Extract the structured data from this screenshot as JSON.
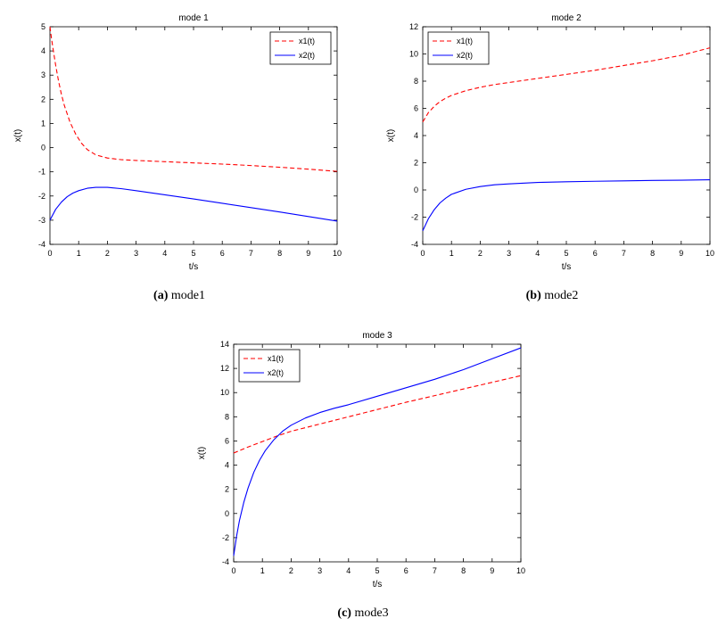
{
  "page": {
    "background": "#ffffff"
  },
  "colors": {
    "axis": "#000000",
    "x1": "#ff0000",
    "x2": "#0000ff"
  },
  "chart_data": [
    {
      "type": "line",
      "title": "mode 1",
      "caption_label": "(a)",
      "caption_text": "mode1",
      "xlabel": "t/s",
      "ylabel": "x(t)",
      "xlim": [
        0,
        10
      ],
      "ylim": [
        -4,
        5
      ],
      "xticks": [
        0,
        1,
        2,
        3,
        4,
        5,
        6,
        7,
        8,
        9,
        10
      ],
      "yticks": [
        -4,
        -3,
        -2,
        -1,
        0,
        1,
        2,
        3,
        4,
        5
      ],
      "grid": false,
      "legend_position": "top-right",
      "series": [
        {
          "name": "x1(t)",
          "color": "#ff0000",
          "style": "dashed",
          "x": [
            0,
            0.05,
            0.1,
            0.2,
            0.3,
            0.4,
            0.5,
            0.7,
            0.9,
            1.1,
            1.3,
            1.6,
            2,
            2.5,
            3,
            4,
            5,
            6,
            7,
            8,
            9,
            10
          ],
          "y": [
            5,
            4.55,
            4.15,
            3.4,
            2.75,
            2.2,
            1.75,
            1.05,
            0.55,
            0.18,
            -0.08,
            -0.3,
            -0.43,
            -0.5,
            -0.53,
            -0.58,
            -0.63,
            -0.68,
            -0.74,
            -0.81,
            -0.89,
            -0.98
          ]
        },
        {
          "name": "x2(t)",
          "color": "#0000ff",
          "style": "solid",
          "x": [
            0,
            0.2,
            0.4,
            0.6,
            0.8,
            1,
            1.3,
            1.6,
            2,
            2.5,
            3,
            4,
            5,
            6,
            7,
            8,
            9,
            10
          ],
          "y": [
            -3,
            -2.55,
            -2.25,
            -2.03,
            -1.88,
            -1.78,
            -1.68,
            -1.64,
            -1.64,
            -1.7,
            -1.78,
            -1.95,
            -2.12,
            -2.3,
            -2.48,
            -2.66,
            -2.85,
            -3.04
          ]
        }
      ]
    },
    {
      "type": "line",
      "title": "mode 2",
      "caption_label": "(b)",
      "caption_text": "mode2",
      "xlabel": "t/s",
      "ylabel": "x(t)",
      "xlim": [
        0,
        10
      ],
      "ylim": [
        -4,
        12
      ],
      "xticks": [
        0,
        1,
        2,
        3,
        4,
        5,
        6,
        7,
        8,
        9,
        10
      ],
      "yticks": [
        -4,
        -2,
        0,
        2,
        4,
        6,
        8,
        10,
        12
      ],
      "grid": false,
      "legend_position": "top-left",
      "series": [
        {
          "name": "x1(t)",
          "color": "#ff0000",
          "style": "dashed",
          "x": [
            0,
            0.2,
            0.4,
            0.6,
            0.8,
            1,
            1.5,
            2,
            2.5,
            3,
            4,
            5,
            6,
            7,
            8,
            9,
            10
          ],
          "y": [
            5,
            5.7,
            6.15,
            6.5,
            6.75,
            6.95,
            7.3,
            7.55,
            7.75,
            7.9,
            8.2,
            8.5,
            8.8,
            9.15,
            9.5,
            9.9,
            10.45
          ]
        },
        {
          "name": "x2(t)",
          "color": "#0000ff",
          "style": "solid",
          "x": [
            0,
            0.2,
            0.4,
            0.6,
            0.8,
            1,
            1.5,
            2,
            2.5,
            3,
            4,
            5,
            6,
            7,
            8,
            9,
            10
          ],
          "y": [
            -3,
            -2.1,
            -1.45,
            -0.95,
            -0.6,
            -0.32,
            0.05,
            0.25,
            0.38,
            0.45,
            0.55,
            0.6,
            0.64,
            0.67,
            0.7,
            0.72,
            0.75
          ]
        }
      ]
    },
    {
      "type": "line",
      "title": "mode 3",
      "caption_label": "(c)",
      "caption_text": "mode3",
      "xlabel": "t/s",
      "ylabel": "x(t)",
      "xlim": [
        0,
        10
      ],
      "ylim": [
        -4,
        14
      ],
      "xticks": [
        0,
        1,
        2,
        3,
        4,
        5,
        6,
        7,
        8,
        9,
        10
      ],
      "yticks": [
        -4,
        -2,
        0,
        2,
        4,
        6,
        8,
        10,
        12,
        14
      ],
      "grid": false,
      "legend_position": "top-left",
      "series": [
        {
          "name": "x1(t)",
          "color": "#ff0000",
          "style": "dashed",
          "x": [
            0,
            0.5,
            1,
            1.5,
            2,
            3,
            4,
            5,
            6,
            7,
            8,
            9,
            10
          ],
          "y": [
            5,
            5.5,
            5.95,
            6.4,
            6.8,
            7.4,
            8,
            8.6,
            9.2,
            9.75,
            10.3,
            10.85,
            11.4
          ]
        },
        {
          "name": "x2(t)",
          "color": "#0000ff",
          "style": "solid",
          "x": [
            0,
            0.1,
            0.2,
            0.35,
            0.5,
            0.7,
            0.9,
            1.1,
            1.4,
            1.7,
            2,
            2.5,
            3,
            3.5,
            4,
            5,
            6,
            7,
            8,
            9,
            10
          ],
          "y": [
            -3.5,
            -1.9,
            -0.6,
            0.9,
            2.1,
            3.4,
            4.4,
            5.2,
            6.1,
            6.8,
            7.3,
            7.9,
            8.35,
            8.7,
            9,
            9.7,
            10.4,
            11.1,
            11.9,
            12.8,
            13.7
          ]
        }
      ]
    }
  ]
}
